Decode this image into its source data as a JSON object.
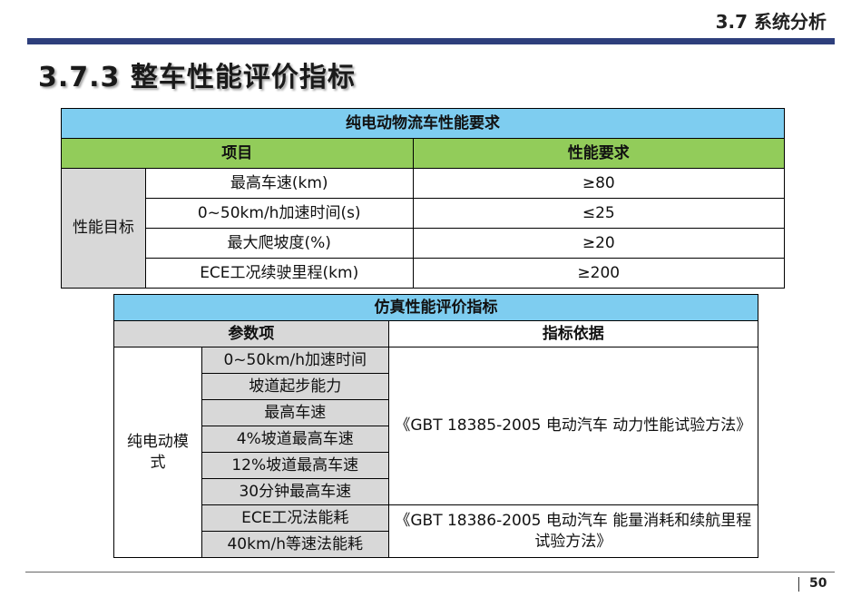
{
  "header": {
    "section": "3.7 系统分析"
  },
  "title": "3.7.3 整车性能评价指标",
  "table1": {
    "title": "纯电动物流车性能要求",
    "col_item": "项目",
    "col_req": "性能要求",
    "group": "性能目标",
    "rows": [
      {
        "item": "最高车速(km)",
        "req": "≥80"
      },
      {
        "item": "0~50km/h加速时间(s)",
        "req": "≤25"
      },
      {
        "item": "最大爬坡度(%)",
        "req": "≥20"
      },
      {
        "item": "ECE工况续驶里程(km)",
        "req": "≥200"
      }
    ]
  },
  "table2": {
    "title": "仿真性能评价指标",
    "col_param": "参数项",
    "col_basis": "指标依据",
    "group": "纯电动模式",
    "params": [
      "0~50km/h加速时间",
      "坡道起步能力",
      "最高车速",
      "4%坡道最高车速",
      "12%坡道最高车速",
      "30分钟最高车速",
      "ECE工况法能耗",
      "40km/h等速法能耗"
    ],
    "basis1": "《GBT 18385-2005 电动汽车 动力性能试验方法》",
    "basis2": "《GBT 18386-2005 电动汽车 能量消耗和续航里程试验方法》"
  },
  "footer": {
    "page": "50"
  }
}
